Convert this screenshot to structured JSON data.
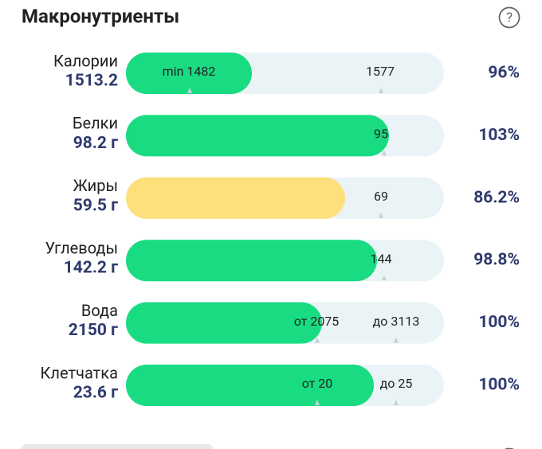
{
  "header": {
    "title": "Макронутриенты"
  },
  "rows": [
    {
      "name": "Калории",
      "amount": "1513.2",
      "targets": [
        "min 1482",
        "1577"
      ],
      "percent": "96%"
    },
    {
      "name": "Белки",
      "amount": "98.2 г",
      "targets": [
        "95"
      ],
      "percent": "103%"
    },
    {
      "name": "Жиры",
      "amount": "59.5 г",
      "targets": [
        "69"
      ],
      "percent": "86.2%"
    },
    {
      "name": "Углеводы",
      "amount": "142.2 г",
      "targets": [
        "144"
      ],
      "percent": "98.8%"
    },
    {
      "name": "Вода",
      "amount": "2150 г",
      "targets": [
        "от 2075",
        "до 3113"
      ],
      "percent": "100%"
    },
    {
      "name": "Клетчатка",
      "amount": "23.6 г",
      "targets": [
        "от 20",
        "до 25"
      ],
      "percent": "100%"
    }
  ]
}
